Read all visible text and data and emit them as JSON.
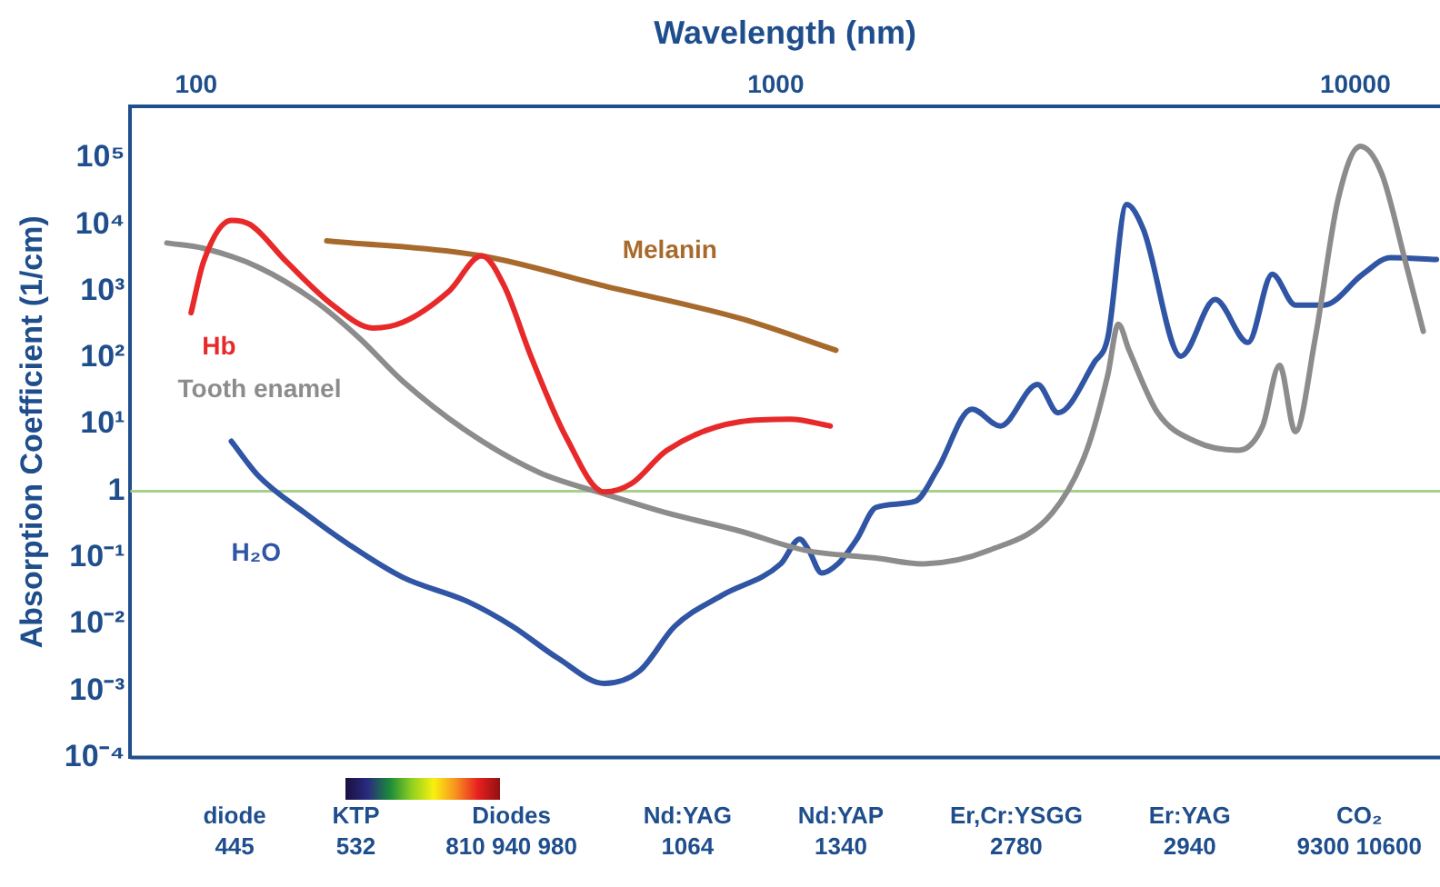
{
  "chart_data": {
    "type": "line",
    "xlabel": "Wavelength (nm)",
    "ylabel": "Absorption Coefficient (1/cm)",
    "log": "xy",
    "xlim": [
      77,
      14000
    ],
    "xticks": [
      100,
      1000,
      10000
    ],
    "ylim": [
      0.0001,
      600000
    ],
    "yticks": [
      {
        "value": 100000,
        "label": "10⁵"
      },
      {
        "value": 10000,
        "label": "10⁴"
      },
      {
        "value": 1000,
        "label": "10³"
      },
      {
        "value": 100,
        "label": "10²"
      },
      {
        "value": 10,
        "label": "10¹"
      },
      1,
      {
        "value": 0.1,
        "label": "10⁻¹"
      },
      {
        "value": 0.01,
        "label": "10⁻²"
      },
      {
        "value": 0.001,
        "label": "10⁻³"
      },
      {
        "value": 0.0001,
        "label": "10⁻⁴"
      }
    ],
    "grid": false,
    "legend": false,
    "marker": "none",
    "line_style": "solid",
    "series": [
      {
        "name": "Hb",
        "color": "#e8292a",
        "x": [
          98,
          103,
          115,
          124,
          143,
          172,
          202,
          227,
          273,
          311,
          340,
          378,
          435,
          506,
          564,
          649,
          869,
          1059,
          1242
        ],
        "values": [
          475,
          2800,
          11600,
          10000,
          2800,
          620,
          280,
          340,
          1000,
          3400,
          1200,
          106,
          6.4,
          0.97,
          1.3,
          4.1,
          11,
          12,
          9.5
        ]
      },
      {
        "name": "Melanin",
        "color": "#a86a2c",
        "x": [
          168,
          311,
          506,
          869,
          1270
        ],
        "values": [
          5700,
          3400,
          1200,
          390,
          130
        ]
      },
      {
        "name": "Tooth enamel",
        "color": "#8c8c8c",
        "x": [
          89,
          103,
          128,
          159,
          191,
          227,
          294,
          391,
          506,
          649,
          869,
          1120,
          1490,
          1790,
          2340,
          3000,
          3440,
          3740,
          3900,
          4070,
          4560,
          5290,
          6280,
          6920,
          7400,
          7880,
          8530,
          9340,
          10200,
          11100,
          12200,
          13100
        ],
        "values": [
          5300,
          4400,
          2300,
          750,
          200,
          45,
          7.8,
          1.9,
          0.91,
          0.47,
          0.25,
          0.13,
          0.099,
          0.081,
          0.13,
          0.47,
          4.1,
          55,
          320,
          130,
          15,
          5.6,
          4.1,
          9.5,
          77,
          7.8,
          200,
          24000,
          150000,
          59000,
          2800,
          250
        ]
      },
      {
        "name": "H₂O",
        "color": "#2f55a4",
        "x": [
          115,
          128,
          154,
          183,
          227,
          294,
          351,
          421,
          506,
          582,
          670,
          806,
          1020,
          1100,
          1140,
          1200,
          1280,
          1380,
          1490,
          1740,
          1900,
          2180,
          2440,
          2830,
          3070,
          3550,
          3740,
          4030,
          4310,
          5000,
          5730,
          6530,
          7190,
          7880,
          8830,
          10300,
          11500,
          13800
        ],
        "values": [
          5.6,
          1.7,
          0.47,
          0.16,
          0.051,
          0.022,
          0.0094,
          0.0031,
          0.0013,
          0.002,
          0.0094,
          0.027,
          0.081,
          0.19,
          0.13,
          0.059,
          0.081,
          0.19,
          0.57,
          0.7,
          2.1,
          17,
          9.5,
          40,
          15,
          87,
          200,
          20000,
          8400,
          106,
          750,
          170,
          1800,
          620,
          620,
          1800,
          3200,
          3000
        ]
      }
    ],
    "ref_lines": [
      {
        "axis": "y",
        "value": 1,
        "color": "#a8d08d"
      }
    ],
    "annotations": [
      "diode\n445",
      "KTP\n532",
      "Diodes\n810 940 980",
      "Nd:YAG\n1064",
      "Nd:YAP\n1340",
      "Er,Cr:YSGG\n2780",
      "Er:YAG\n2940",
      "CO₂\n9300 10600"
    ]
  }
}
